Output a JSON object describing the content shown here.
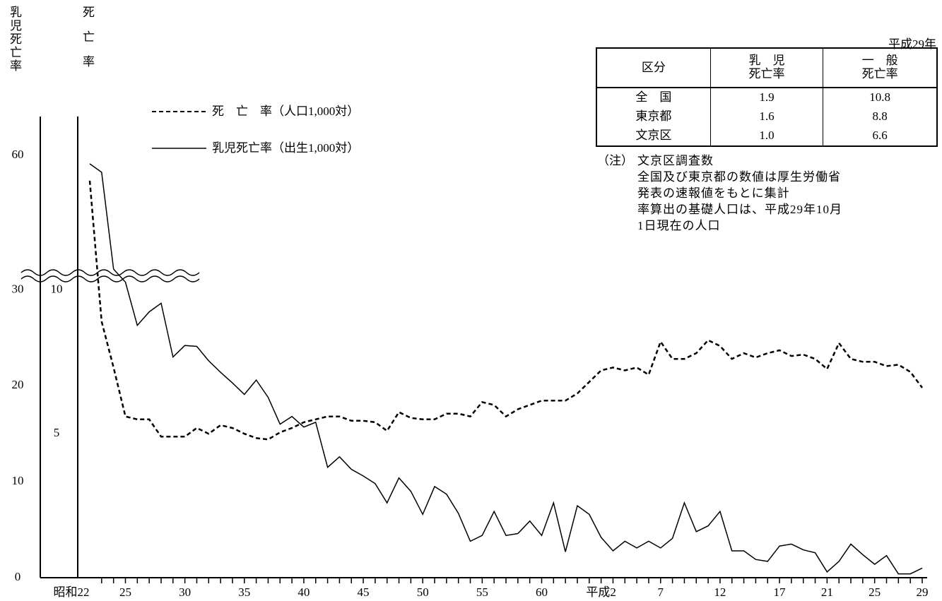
{
  "chart_data": {
    "type": "line",
    "ylabel": "乳児死亡率",
    "y2label": "死亡率",
    "categories": [
      "昭和22",
      null,
      null,
      "25",
      null,
      null,
      null,
      null,
      "30",
      null,
      null,
      null,
      null,
      "35",
      null,
      null,
      null,
      null,
      "40",
      null,
      null,
      null,
      null,
      "45",
      null,
      null,
      null,
      null,
      "50",
      null,
      null,
      null,
      null,
      "55",
      null,
      null,
      null,
      null,
      "60",
      null,
      null,
      null,
      null,
      "平成2",
      null,
      null,
      null,
      null,
      "7",
      null,
      null,
      null,
      null,
      "12",
      null,
      null,
      null,
      null,
      "17",
      null,
      null,
      null,
      "21",
      null,
      null,
      null,
      "25",
      null,
      null,
      null,
      "29"
    ],
    "series": [
      {
        "name": "死　亡　率（人口1,000対）",
        "axis": "y2",
        "style": "dashed",
        "color": "#000000",
        "values": [
          18,
          8.9,
          7.3,
          5.6,
          5.5,
          5.5,
          4.9,
          4.9,
          4.9,
          5.2,
          5.0,
          5.3,
          5.2,
          5.0,
          4.85,
          4.8,
          5.05,
          5.2,
          5.4,
          5.5,
          5.6,
          5.6,
          5.45,
          5.45,
          5.4,
          5.1,
          5.75,
          5.55,
          5.5,
          5.5,
          5.7,
          5.7,
          5.6,
          6.1,
          6.0,
          5.6,
          5.85,
          6.0,
          6.15,
          6.15,
          6.15,
          6.4,
          6.8,
          7.2,
          7.3,
          7.2,
          7.3,
          7.05,
          8.2,
          7.6,
          7.6,
          7.8,
          8.25,
          8.05,
          7.6,
          7.8,
          7.65,
          7.8,
          7.9,
          7.7,
          7.75,
          7.6,
          7.25,
          8.15,
          7.6,
          7.5,
          7.5,
          7.35,
          7.4,
          7.15,
          6.6
        ]
      },
      {
        "name": "乳児死亡率（出生1,000対）",
        "axis": "y",
        "style": "solid",
        "color": "#000000",
        "values": [
          58,
          56,
          33,
          30.8,
          26.3,
          27.7,
          28.6,
          23.0,
          24.2,
          24.1,
          22.6,
          21.4,
          20.3,
          19.1,
          20.6,
          18.8,
          16.0,
          16.8,
          15.7,
          16.2,
          11.5,
          12.6,
          11.3,
          10.6,
          9.8,
          7.8,
          10.4,
          9.0,
          6.6,
          9.5,
          8.7,
          6.7,
          3.8,
          4.4,
          6.9,
          4.4,
          4.6,
          5.9,
          4.4,
          7.8,
          2.7,
          7.5,
          6.6,
          4.2,
          2.8,
          3.8,
          3.1,
          3.8,
          3.1,
          4.1,
          7.8,
          4.8,
          5.4,
          6.9,
          2.8,
          2.8,
          1.9,
          1.7,
          3.3,
          3.5,
          2.9,
          2.6,
          0.6,
          1.7,
          3.5,
          2.4,
          1.4,
          2.3,
          0.4,
          0.4,
          1.0
        ]
      }
    ],
    "ylim": [
      0,
      31.5
    ],
    "ylim_upper": [
      31.5,
      60
    ],
    "yticks": [
      0,
      10,
      20,
      30,
      60
    ],
    "y2lim": [
      0,
      10.5
    ],
    "y2lim_upper": [
      10.5,
      20
    ],
    "y2ticks": [
      5,
      10
    ],
    "axis_break": true,
    "grid": false
  },
  "table": {
    "caption": "平成29年",
    "header": [
      "区分",
      "乳　児\n死亡率",
      "一　般\n死亡率"
    ],
    "rows": [
      [
        "全　国",
        "1.9",
        "10.8"
      ],
      [
        "東京都",
        "1.6",
        "8.8"
      ],
      [
        "文京区",
        "1.0",
        "6.6"
      ]
    ]
  },
  "note": {
    "label": "（注）",
    "lines": [
      "文京区調査数",
      "全国及び東京都の数値は厚生労働省",
      "発表の速報値をもとに集計",
      "率算出の基礎人口は、平成29年10月",
      "1日現在の人口"
    ]
  }
}
